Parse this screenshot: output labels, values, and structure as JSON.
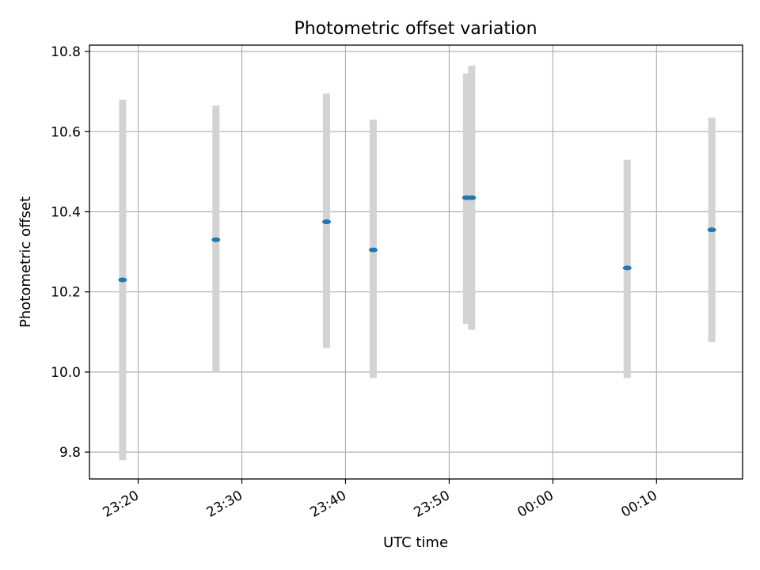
{
  "chart_data": {
    "type": "scatter",
    "title": "Photometric offset variation",
    "xlabel": "UTC time",
    "ylabel": "Photometric offset",
    "x_ticks": [
      "23:20",
      "23:30",
      "23:40",
      "23:50",
      "00:00",
      "00:10"
    ],
    "x_tick_minutes": [
      -40,
      -30,
      -20,
      -10,
      0,
      10
    ],
    "y_ticks": [
      "9.8",
      "10.0",
      "10.2",
      "10.4",
      "10.6",
      "10.8"
    ],
    "y_tick_values": [
      9.8,
      10.0,
      10.2,
      10.4,
      10.6,
      10.8
    ],
    "xlim_minutes": [
      -44.7,
      18.3
    ],
    "ylim": [
      9.733,
      10.816
    ],
    "grid": true,
    "series": [
      {
        "marker_color": "#1f77b4",
        "errorbar_color": "#d3d3d3",
        "points": [
          {
            "time": "23:18:30",
            "minutes": -41.5,
            "value": 10.23,
            "low": 9.78,
            "high": 10.68
          },
          {
            "time": "23:27:30",
            "minutes": -32.5,
            "value": 10.33,
            "low": 10.0,
            "high": 10.665
          },
          {
            "time": "23:38:10",
            "minutes": -21.83,
            "value": 10.375,
            "low": 10.06,
            "high": 10.695
          },
          {
            "time": "23:42:40",
            "minutes": -17.33,
            "value": 10.305,
            "low": 9.985,
            "high": 10.63
          },
          {
            "time": "23:51:40",
            "minutes": -8.33,
            "value": 10.435,
            "low": 10.12,
            "high": 10.745
          },
          {
            "time": "23:52:10",
            "minutes": -7.83,
            "value": 10.435,
            "low": 10.105,
            "high": 10.765
          },
          {
            "time": "00:07:10",
            "minutes": 7.17,
            "value": 10.26,
            "low": 9.985,
            "high": 10.53
          },
          {
            "time": "00:15:20",
            "minutes": 15.33,
            "value": 10.355,
            "low": 10.075,
            "high": 10.635
          }
        ]
      }
    ]
  }
}
